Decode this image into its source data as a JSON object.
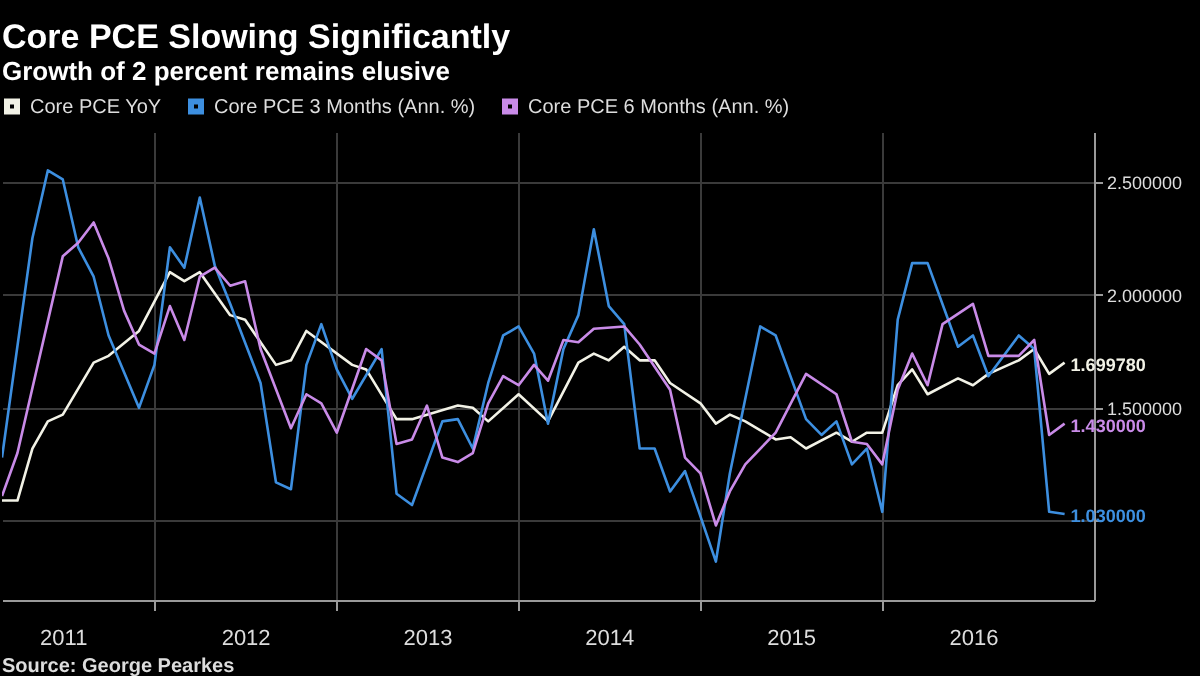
{
  "chart_data": {
    "type": "line",
    "title": "Core PCE Slowing Significantly",
    "subtitle": "Growth of 2 percent remains elusive",
    "annotations": [
      "Source: George Pearkes"
    ],
    "xlim": [
      "2011-03",
      "2017-03"
    ],
    "xticks": [
      {
        "value": "2011-07",
        "label": "2011"
      },
      {
        "value": "2012",
        "label": null
      },
      {
        "value": "2012-07",
        "label": "2012"
      },
      {
        "value": "2013",
        "label": null
      },
      {
        "value": "2013-07",
        "label": "2013"
      },
      {
        "value": "2014",
        "label": null
      },
      {
        "value": "2014-07",
        "label": "2014"
      },
      {
        "value": "2015",
        "label": null
      },
      {
        "value": "2015-07",
        "label": "2015"
      },
      {
        "value": "2016",
        "label": null
      },
      {
        "value": "2016-07",
        "label": "2016"
      }
    ],
    "ylim": [
      0.65,
      2.72
    ],
    "yticks": [
      {
        "value": 1,
        "label": null
      },
      {
        "value": 1.5,
        "label": "1.500000"
      },
      {
        "value": 2,
        "label": "2.000000"
      },
      {
        "value": 2.5,
        "label": "2.500000"
      }
    ],
    "grid": true,
    "legend": "top left",
    "series": [
      {
        "name": "Core PCE YoY",
        "color": "#f2f2e6",
        "x": [
          "2011-03",
          "2011-04",
          "2011-05",
          "2011-06",
          "2011-07",
          "2011-09",
          "2011-10",
          "2011-12",
          "2012-02",
          "2012-03",
          "2012-04",
          "2012-06",
          "2012-07",
          "2012-09",
          "2012-10",
          "2012-11",
          "2013-02",
          "2013-03",
          "2013-05",
          "2013-06",
          "2013-09",
          "2013-10",
          "2013-11",
          "2014-01",
          "2014-03",
          "2014-05",
          "2014-06",
          "2014-07",
          "2014-08",
          "2014-09",
          "2014-10",
          "2014-11",
          "2015-01",
          "2015-02",
          "2015-03",
          "2015-04",
          "2015-06",
          "2015-07",
          "2015-08",
          "2015-10",
          "2015-11",
          "2015-12",
          "2016-01",
          "2016-02",
          "2016-03",
          "2016-04",
          "2016-06",
          "2016-07",
          "2016-08",
          "2016-10",
          "2016-11",
          "2016-12",
          "2017-01"
        ],
        "values": [
          1.09,
          1.09,
          1.32,
          1.44,
          1.47,
          1.7,
          1.73,
          1.84,
          2.1,
          2.06,
          2.1,
          1.91,
          1.89,
          1.69,
          1.71,
          1.84,
          1.69,
          1.67,
          1.45,
          1.45,
          1.51,
          1.5,
          1.44,
          1.56,
          1.44,
          1.7,
          1.74,
          1.71,
          1.77,
          1.71,
          1.71,
          1.61,
          1.52,
          1.43,
          1.47,
          1.44,
          1.36,
          1.37,
          1.32,
          1.39,
          1.35,
          1.39,
          1.39,
          1.6,
          1.67,
          1.56,
          1.63,
          1.6,
          1.65,
          1.71,
          1.76,
          1.65,
          1.69978
        ],
        "value_labels": [
          null,
          null,
          null,
          null,
          null,
          null,
          null,
          null,
          null,
          null,
          null,
          null,
          null,
          null,
          null,
          null,
          null,
          null,
          null,
          null,
          null,
          null,
          null,
          null,
          null,
          null,
          null,
          null,
          null,
          null,
          null,
          null,
          null,
          null,
          null,
          null,
          null,
          null,
          null,
          null,
          null,
          null,
          null,
          null,
          null,
          null,
          null,
          null,
          null,
          null,
          null,
          null,
          "1.699780"
        ]
      },
      {
        "name": "Core PCE 3 Months (Ann. %)",
        "color": "#3d8fe0",
        "x": [
          "2011-03",
          "2011-05",
          "2011-06",
          "2011-07",
          "2011-08",
          "2011-09",
          "2011-10",
          "2011-12",
          "2012-01",
          "2012-02",
          "2012-03",
          "2012-04",
          "2012-05",
          "2012-06",
          "2012-08",
          "2012-09",
          "2012-10",
          "2012-11",
          "2012-12",
          "2013-01",
          "2013-02",
          "2013-04",
          "2013-05",
          "2013-06",
          "2013-08",
          "2013-09",
          "2013-10",
          "2013-11",
          "2013-12",
          "2014-01",
          "2014-02",
          "2014-03",
          "2014-04",
          "2014-05",
          "2014-06",
          "2014-07",
          "2014-08",
          "2014-09",
          "2014-10",
          "2014-11",
          "2014-12",
          "2015-02",
          "2015-03",
          "2015-05",
          "2015-06",
          "2015-08",
          "2015-09",
          "2015-10",
          "2015-11",
          "2015-12",
          "2016-01",
          "2016-02",
          "2016-03",
          "2016-04",
          "2016-06",
          "2016-07",
          "2016-08",
          "2016-10",
          "2016-11",
          "2016-12",
          "2017-01"
        ],
        "values": [
          1.28,
          2.25,
          2.55,
          2.51,
          2.21,
          2.08,
          1.82,
          1.5,
          1.69,
          2.21,
          2.12,
          2.43,
          2.13,
          1.96,
          1.61,
          1.17,
          1.14,
          1.69,
          1.87,
          1.67,
          1.54,
          1.76,
          1.12,
          1.07,
          1.44,
          1.45,
          1.32,
          1.61,
          1.82,
          1.86,
          1.74,
          1.43,
          1.76,
          1.91,
          2.29,
          1.95,
          1.87,
          1.32,
          1.32,
          1.13,
          1.22,
          0.82,
          1.21,
          1.86,
          1.82,
          1.45,
          1.38,
          1.44,
          1.25,
          1.32,
          1.04,
          1.89,
          2.14,
          2.14,
          1.77,
          1.82,
          1.64,
          1.82,
          1.76,
          1.04,
          1.03
        ],
        "value_labels": [
          null,
          null,
          null,
          null,
          null,
          null,
          null,
          null,
          null,
          null,
          null,
          null,
          null,
          null,
          null,
          null,
          null,
          null,
          null,
          null,
          null,
          null,
          null,
          null,
          null,
          null,
          null,
          null,
          null,
          null,
          null,
          null,
          null,
          null,
          null,
          null,
          null,
          null,
          null,
          null,
          null,
          null,
          null,
          null,
          null,
          null,
          null,
          null,
          null,
          null,
          null,
          null,
          null,
          null,
          null,
          null,
          null,
          null,
          null,
          null,
          "1.030000"
        ]
      },
      {
        "name": "Core PCE 6 Months (Ann. %)",
        "color": "#c98be8",
        "x": [
          "2011-03",
          "2011-04",
          "2011-07",
          "2011-08",
          "2011-09",
          "2011-10",
          "2011-11",
          "2011-12",
          "2012-01",
          "2012-02",
          "2012-03",
          "2012-04",
          "2012-05",
          "2012-06",
          "2012-07",
          "2012-08",
          "2012-10",
          "2012-11",
          "2012-12",
          "2013-01",
          "2013-03",
          "2013-04",
          "2013-05",
          "2013-06",
          "2013-07",
          "2013-08",
          "2013-09",
          "2013-10",
          "2013-11",
          "2013-12",
          "2014-01",
          "2014-02",
          "2014-03",
          "2014-04",
          "2014-05",
          "2014-06",
          "2014-08",
          "2014-09",
          "2014-11",
          "2014-12",
          "2015-01",
          "2015-02",
          "2015-03",
          "2015-04",
          "2015-06",
          "2015-08",
          "2015-10",
          "2015-11",
          "2015-12",
          "2016-01",
          "2016-02",
          "2016-03",
          "2016-04",
          "2016-05",
          "2016-07",
          "2016-08",
          "2016-10",
          "2016-11",
          "2016-12",
          "2017-01"
        ],
        "values": [
          1.11,
          1.3,
          2.17,
          2.23,
          2.32,
          2.16,
          1.93,
          1.78,
          1.74,
          1.95,
          1.8,
          2.08,
          2.12,
          2.04,
          2.06,
          1.76,
          1.41,
          1.56,
          1.52,
          1.39,
          1.76,
          1.71,
          1.34,
          1.36,
          1.51,
          1.28,
          1.26,
          1.3,
          1.52,
          1.64,
          1.6,
          1.69,
          1.62,
          1.8,
          1.79,
          1.85,
          1.86,
          1.78,
          1.58,
          1.28,
          1.21,
          0.98,
          1.13,
          1.25,
          1.39,
          1.65,
          1.56,
          1.35,
          1.34,
          1.25,
          1.58,
          1.74,
          1.6,
          1.87,
          1.96,
          1.73,
          1.73,
          1.8,
          1.38,
          1.43
        ],
        "value_labels": [
          null,
          null,
          null,
          null,
          null,
          null,
          null,
          null,
          null,
          null,
          null,
          null,
          null,
          null,
          null,
          null,
          null,
          null,
          null,
          null,
          null,
          null,
          null,
          null,
          null,
          null,
          null,
          null,
          null,
          null,
          null,
          null,
          null,
          null,
          null,
          null,
          null,
          null,
          null,
          null,
          null,
          null,
          null,
          null,
          null,
          null,
          null,
          null,
          null,
          null,
          null,
          null,
          null,
          null,
          null,
          null,
          null,
          null,
          null,
          "1.430000"
        ]
      }
    ]
  }
}
